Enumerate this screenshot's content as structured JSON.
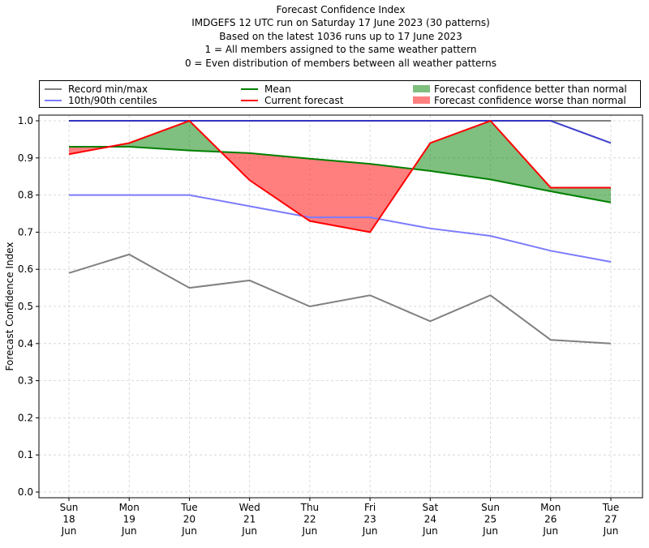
{
  "chart_data": {
    "type": "line",
    "title_lines": [
      "Forecast Confidence Index",
      "IMDGEFS 12 UTC run on Saturday 17 June 2023 (30 patterns)",
      "Based on the latest 1036 runs up to 17 June 2023",
      "1 = All members assigned to the same weather pattern",
      "0 = Even distribution of members between all weather patterns"
    ],
    "xlabel": "",
    "ylabel": "Forecast Confidence Index",
    "ylim": [
      0.0,
      1.0
    ],
    "yticks": [
      "0.0",
      "0.1",
      "0.2",
      "0.3",
      "0.4",
      "0.5",
      "0.6",
      "0.7",
      "0.8",
      "0.9",
      "1.0"
    ],
    "ytick_values": [
      0.0,
      0.1,
      0.2,
      0.3,
      0.4,
      0.5,
      0.6,
      0.7,
      0.8,
      0.9,
      1.0
    ],
    "grid": true,
    "legend_placement": "top (above plot)",
    "categories": [
      {
        "day": "Sun",
        "date": "18",
        "month": "Jun"
      },
      {
        "day": "Mon",
        "date": "19",
        "month": "Jun"
      },
      {
        "day": "Tue",
        "date": "20",
        "month": "Jun"
      },
      {
        "day": "Wed",
        "date": "21",
        "month": "Jun"
      },
      {
        "day": "Thu",
        "date": "22",
        "month": "Jun"
      },
      {
        "day": "Fri",
        "date": "23",
        "month": "Jun"
      },
      {
        "day": "Sat",
        "date": "24",
        "month": "Jun"
      },
      {
        "day": "Sun",
        "date": "25",
        "month": "Jun"
      },
      {
        "day": "Mon",
        "date": "26",
        "month": "Jun"
      },
      {
        "day": "Tue",
        "date": "27",
        "month": "Jun"
      }
    ],
    "series": [
      {
        "name": "Record max",
        "legend_group": "Record min/max",
        "color": "#808080",
        "values": [
          1.0,
          1.0,
          1.0,
          1.0,
          1.0,
          1.0,
          1.0,
          1.0,
          1.0,
          1.0
        ]
      },
      {
        "name": "Record min",
        "legend_group": "Record min/max",
        "color": "#808080",
        "values": [
          0.59,
          0.64,
          0.55,
          0.57,
          0.5,
          0.53,
          0.46,
          0.53,
          0.41,
          0.4
        ]
      },
      {
        "name": "90th centile",
        "legend_group": "10th/90th centiles",
        "color": "#7b7bff",
        "values": [
          1.0,
          1.0,
          1.0,
          1.0,
          1.0,
          1.0,
          1.0,
          1.0,
          1.0,
          0.94
        ]
      },
      {
        "name": "10th centile",
        "legend_group": "10th/90th centiles",
        "color": "#7b7bff",
        "values": [
          0.8,
          0.8,
          0.8,
          0.77,
          0.74,
          0.74,
          0.71,
          0.69,
          0.65,
          0.62
        ]
      },
      {
        "name": "Mean",
        "legend_group": "Mean",
        "color": "#008000",
        "values": [
          0.93,
          0.93,
          0.92,
          0.913,
          0.898,
          0.884,
          0.865,
          0.842,
          0.81,
          0.78
        ]
      },
      {
        "name": "Current forecast",
        "legend_group": "Current forecast",
        "color": "#ff0000",
        "values": [
          0.91,
          0.94,
          1.0,
          0.84,
          0.73,
          0.7,
          0.94,
          1.0,
          0.82,
          0.82
        ]
      }
    ],
    "fills": [
      {
        "name": "Forecast confidence better than normal",
        "color": "#008000",
        "opacity": 0.5,
        "condition": "current > mean"
      },
      {
        "name": "Forecast confidence worse than normal",
        "color": "#ff0000",
        "opacity": 0.5,
        "condition": "current < mean"
      }
    ],
    "legend": {
      "entries": [
        {
          "label": "Record min/max",
          "kind": "line",
          "color": "#808080"
        },
        {
          "label": "10th/90th centiles",
          "kind": "line",
          "color": "#7b7bff"
        },
        {
          "label": "Mean",
          "kind": "line",
          "color": "#008000"
        },
        {
          "label": "Current forecast",
          "kind": "line",
          "color": "#ff0000"
        },
        {
          "label": "Forecast confidence better than normal",
          "kind": "patch",
          "color": "#7fbf7f"
        },
        {
          "label": "Forecast confidence worse than normal",
          "kind": "patch",
          "color": "#ff8080"
        }
      ]
    }
  }
}
